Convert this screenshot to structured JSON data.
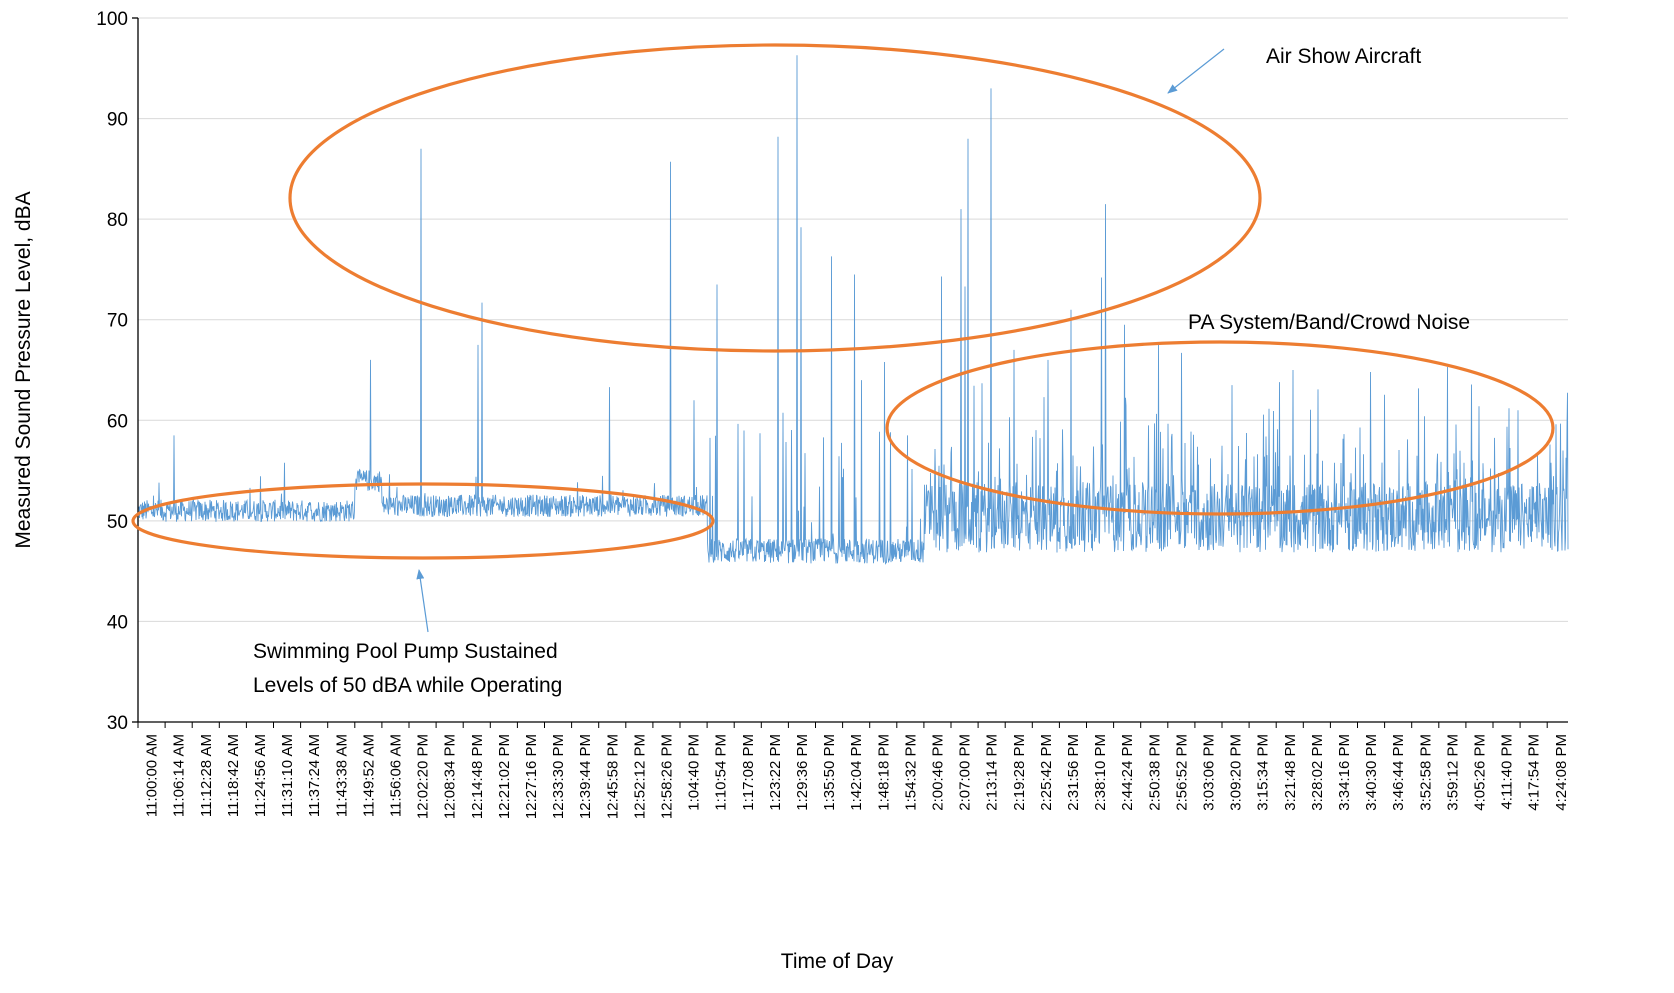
{
  "chart_data": {
    "type": "line",
    "title": "",
    "xlabel": "Time of Day",
    "ylabel": "Measured Sound Pressure Level, dBA",
    "ylim": [
      30,
      100
    ],
    "yticks": [
      30,
      40,
      50,
      60,
      70,
      80,
      90,
      100
    ],
    "grid": "horizontal",
    "legend": "none",
    "x_tick_labels": [
      "11:00:00 AM",
      "11:06:14 AM",
      "11:12:28 AM",
      "11:18:42 AM",
      "11:24:56 AM",
      "11:31:10 AM",
      "11:37:24 AM",
      "11:43:38 AM",
      "11:49:52 AM",
      "11:56:06 AM",
      "12:02:20 PM",
      "12:08:34 PM",
      "12:14:48 PM",
      "12:21:02 PM",
      "12:27:16 PM",
      "12:33:30 PM",
      "12:39:44 PM",
      "12:45:58 PM",
      "12:52:12 PM",
      "12:58:26 PM",
      "1:04:40 PM",
      "1:10:54 PM",
      "1:17:08 PM",
      "1:23:22 PM",
      "1:29:36 PM",
      "1:35:50 PM",
      "1:42:04 PM",
      "1:48:18 PM",
      "1:54:32 PM",
      "2:00:46 PM",
      "2:07:00 PM",
      "2:13:14 PM",
      "2:19:28 PM",
      "2:25:42 PM",
      "2:31:56 PM",
      "2:38:10 PM",
      "2:44:24 PM",
      "2:50:38 PM",
      "2:56:52 PM",
      "3:03:06 PM",
      "3:09:20 PM",
      "3:15:34 PM",
      "3:21:48 PM",
      "3:28:02 PM",
      "3:34:16 PM",
      "3:40:30 PM",
      "3:46:44 PM",
      "3:52:58 PM",
      "3:59:12 PM",
      "4:05:26 PM",
      "4:11:40 PM",
      "4:17:54 PM",
      "4:24:08 PM"
    ],
    "series": [
      {
        "color": "#5b9bd5",
        "baseline_segments": [
          {
            "from": "11:00:00 AM",
            "to": "11:49:52 AM",
            "level": 51
          },
          {
            "from": "11:49:52 AM",
            "to": "11:56:06 AM",
            "level": 54
          },
          {
            "from": "11:56:06 AM",
            "to": "1:10:54 PM",
            "level": 51.5
          },
          {
            "from": "1:10:54 PM",
            "to": "2:00:46 PM",
            "level": 47
          },
          {
            "from": "2:00:46 PM",
            "to": "4:24:08 PM",
            "level": 50
          }
        ],
        "peaks": [
          {
            "x": "11:06:14 AM",
            "y": 58.5
          },
          {
            "x": "11:49:52 AM",
            "y": 66
          },
          {
            "x": "12:02:20 PM",
            "y": 87
          },
          {
            "x": "12:14:48 PM",
            "y": 71.7
          },
          {
            "x": "12:14:48 PM",
            "y": 67.5
          },
          {
            "x": "12:45:58 PM",
            "y": 63.3
          },
          {
            "x": "12:58:26 PM",
            "y": 85.7
          },
          {
            "x": "1:04:40 PM",
            "y": 62
          },
          {
            "x": "1:10:54 PM",
            "y": 73.5
          },
          {
            "x": "1:23:22 PM",
            "y": 88.2
          },
          {
            "x": "1:29:36 PM",
            "y": 79.2
          },
          {
            "x": "1:29:36 PM",
            "y": 96.3
          },
          {
            "x": "1:35:50 PM",
            "y": 76.3
          },
          {
            "x": "1:42:04 PM",
            "y": 74.5
          },
          {
            "x": "1:42:04 PM",
            "y": 64
          },
          {
            "x": "1:48:18 PM",
            "y": 65.8
          },
          {
            "x": "1:54:32 PM",
            "y": 58.5
          },
          {
            "x": "2:00:46 PM",
            "y": 74.3
          },
          {
            "x": "2:07:00 PM",
            "y": 73.3
          },
          {
            "x": "2:07:00 PM",
            "y": 81
          },
          {
            "x": "2:07:00 PM",
            "y": 88
          },
          {
            "x": "2:13:14 PM",
            "y": 93
          },
          {
            "x": "2:19:28 PM",
            "y": 67
          },
          {
            "x": "2:25:42 PM",
            "y": 66
          },
          {
            "x": "2:31:56 PM",
            "y": 71
          },
          {
            "x": "2:38:10 PM",
            "y": 81.5
          },
          {
            "x": "2:38:10 PM",
            "y": 74.2
          },
          {
            "x": "2:44:24 PM",
            "y": 69.5
          },
          {
            "x": "2:50:38 PM",
            "y": 67.5
          },
          {
            "x": "2:56:52 PM",
            "y": 66.7
          },
          {
            "x": "3:09:20 PM",
            "y": 63.5
          },
          {
            "x": "3:21:48 PM",
            "y": 65
          },
          {
            "x": "3:40:30 PM",
            "y": 64.8
          },
          {
            "x": "3:59:12 PM",
            "y": 65.3
          },
          {
            "x": "4:11:40 PM",
            "y": 61.2
          }
        ]
      }
    ],
    "annotations": [
      {
        "text": "Air Show Aircraft",
        "shape": "ellipse",
        "arrow": true
      },
      {
        "text": "PA System/Band/Crowd Noise",
        "shape": "ellipse",
        "arrow": false
      },
      {
        "text_lines": [
          "Swimming Pool Pump Sustained",
          "Levels of 50 dBA while Operating"
        ],
        "shape": "ellipse",
        "arrow": true
      }
    ]
  },
  "style": {
    "line_color": "#5b9bd5",
    "ellipse_color": "#ed7d31",
    "gridline_color": "#d9d9d9",
    "arrow_color": "#5b9bd5"
  }
}
